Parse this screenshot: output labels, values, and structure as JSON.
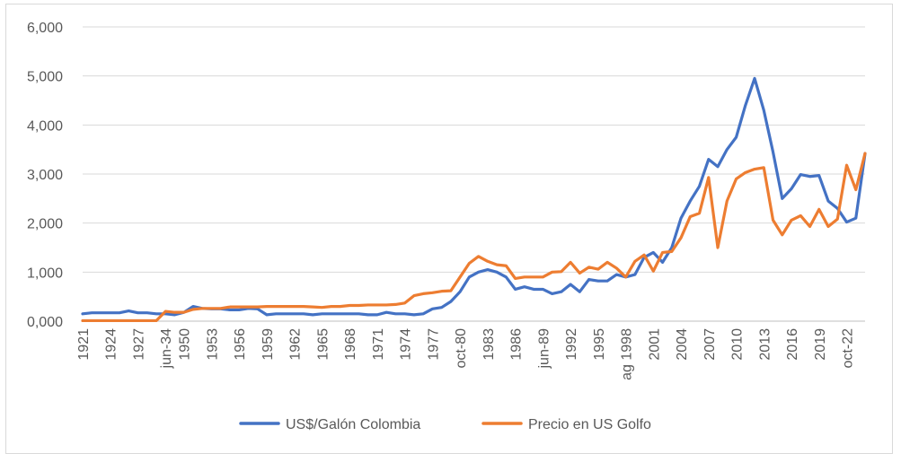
{
  "chart_data": {
    "type": "line",
    "title": "",
    "xlabel": "",
    "ylabel": "",
    "ylim": [
      0,
      6000
    ],
    "yticks": [
      0,
      1000,
      2000,
      3000,
      4000,
      5000,
      6000
    ],
    "ytick_labels": [
      "0,000",
      "1,000",
      "2,000",
      "3,000",
      "4,000",
      "5,000",
      "6,000"
    ],
    "grid": "horizontal",
    "legend_position": "bottom",
    "x": [
      "1921",
      "1922",
      "1923",
      "1924",
      "1925",
      "1926",
      "1927",
      "1928",
      "1929",
      "jun-34",
      "1948",
      "1950",
      "1951",
      "1952",
      "1953",
      "1954",
      "1955",
      "1956",
      "1957",
      "1958",
      "1959",
      "1960",
      "1961",
      "1962",
      "1963",
      "1964",
      "1965",
      "1966",
      "1967",
      "1968",
      "1969",
      "1970",
      "1971",
      "1972",
      "1973",
      "1974",
      "1975",
      "1976",
      "1977",
      "1978",
      "1979",
      "oct-80",
      "1981",
      "1982",
      "1983",
      "1984",
      "1985",
      "1986",
      "1987",
      "1988",
      "jun-89",
      "1990",
      "1991",
      "1992",
      "1993",
      "1994",
      "1995",
      "1996",
      "1997",
      "ag 1998",
      "1999",
      "2000",
      "2001",
      "2002",
      "2003",
      "2004",
      "2005",
      "2006",
      "2007",
      "2008",
      "2009",
      "2010",
      "2011",
      "2012",
      "2013",
      "2014",
      "2015",
      "2016",
      "2017",
      "2018",
      "2019",
      "2020",
      "2021",
      "oct-22",
      "2023",
      "2024"
    ],
    "tick_labels": [
      "1921",
      "1924",
      "1927",
      "jun-34",
      "1950",
      "1953",
      "1956",
      "1959",
      "1962",
      "1965",
      "1968",
      "1971",
      "1974",
      "1977",
      "oct-80",
      "1983",
      "1986",
      "jun-89",
      "1992",
      "1995",
      "ag 1998",
      "2001",
      "2004",
      "2007",
      "2010",
      "2013",
      "2016",
      "2019",
      "oct-22"
    ],
    "series": [
      {
        "name": "US$/Galón Colombia",
        "color": "#4472c4",
        "values": [
          150,
          170,
          170,
          170,
          170,
          210,
          170,
          170,
          150,
          150,
          130,
          180,
          300,
          260,
          250,
          250,
          230,
          230,
          260,
          250,
          130,
          150,
          150,
          150,
          150,
          130,
          150,
          150,
          150,
          150,
          150,
          130,
          130,
          180,
          150,
          150,
          130,
          150,
          250,
          280,
          400,
          600,
          900,
          1000,
          1050,
          1000,
          900,
          650,
          700,
          650,
          650,
          560,
          600,
          750,
          600,
          850,
          820,
          820,
          950,
          900,
          950,
          1300,
          1400,
          1200,
          1500,
          2100,
          2450,
          2750,
          3300,
          3150,
          3500,
          3750,
          4400,
          4950,
          4300,
          3450,
          2500,
          2700,
          2990,
          2950,
          2970,
          2450,
          2300,
          2020,
          2100,
          3420
        ]
      },
      {
        "name": "Precio en US Golfo",
        "color": "#ed7d31",
        "values": [
          10,
          10,
          10,
          10,
          10,
          10,
          10,
          10,
          10,
          200,
          180,
          180,
          240,
          260,
          260,
          260,
          290,
          290,
          290,
          290,
          300,
          300,
          300,
          300,
          300,
          290,
          280,
          300,
          300,
          320,
          320,
          330,
          330,
          330,
          340,
          370,
          520,
          560,
          580,
          610,
          620,
          900,
          1180,
          1320,
          1220,
          1150,
          1130,
          870,
          900,
          900,
          900,
          1000,
          1010,
          1200,
          980,
          1100,
          1060,
          1200,
          1080,
          900,
          1220,
          1350,
          1020,
          1400,
          1420,
          1700,
          2130,
          2200,
          2930,
          1500,
          2450,
          2900,
          3030,
          3100,
          3130,
          2060,
          1760,
          2060,
          2150,
          1930,
          2280,
          1930,
          2080,
          3180,
          2680,
          3420
        ]
      }
    ]
  }
}
